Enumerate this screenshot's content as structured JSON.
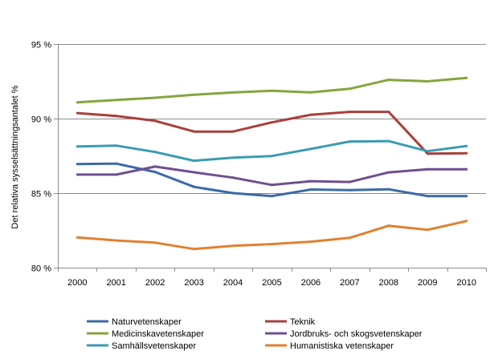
{
  "chart_data": {
    "type": "line",
    "title": "",
    "xlabel": "",
    "ylabel": "Det relativa sysselsättningsantalet %",
    "ylim": [
      80,
      95
    ],
    "yticks": [
      "80 %",
      "85 %",
      "90 %",
      "95 %"
    ],
    "ytick_values": [
      80,
      85,
      90,
      95
    ],
    "grid": "horizontal",
    "legend_position": "bottom",
    "categories": [
      "2000",
      "2001",
      "2002",
      "2003",
      "2004",
      "2005",
      "2006",
      "2007",
      "2008",
      "2009",
      "2010"
    ],
    "series": [
      {
        "name": "Naturvetenskaper",
        "color": "#3b6aa6",
        "values": [
          86.95,
          86.98,
          86.42,
          85.42,
          85.0,
          84.8,
          85.24,
          85.2,
          85.26,
          84.8,
          84.8
        ]
      },
      {
        "name": "Teknik",
        "color": "#aa3f3b",
        "values": [
          90.37,
          90.18,
          89.85,
          89.13,
          89.13,
          89.75,
          90.26,
          90.45,
          90.45,
          87.65,
          87.68
        ]
      },
      {
        "name": "Medicinskavetenskaper",
        "color": "#86a53f",
        "values": [
          91.09,
          91.25,
          91.4,
          91.6,
          91.75,
          91.87,
          91.76,
          92.0,
          92.6,
          92.5,
          92.73
        ]
      },
      {
        "name": "Jordbruks- och skogsvetenskaper",
        "color": "#6f4f8f",
        "values": [
          86.24,
          86.24,
          86.78,
          86.4,
          86.04,
          85.55,
          85.8,
          85.75,
          86.39,
          86.6,
          86.6
        ]
      },
      {
        "name": "Samhällsvetenskaper",
        "color": "#3a9bb3",
        "values": [
          88.13,
          88.19,
          87.76,
          87.17,
          87.38,
          87.49,
          87.97,
          88.46,
          88.49,
          87.81,
          88.16
        ]
      },
      {
        "name": "Humanistiska vetenskaper",
        "color": "#e0812f",
        "values": [
          82.03,
          81.82,
          81.68,
          81.25,
          81.47,
          81.58,
          81.74,
          82.0,
          82.81,
          82.54,
          83.13
        ]
      }
    ]
  }
}
